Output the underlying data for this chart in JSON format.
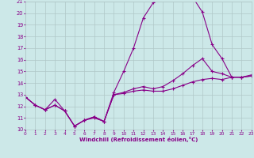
{
  "bg_color": "#cce8e8",
  "grid_color": "#b0c8c8",
  "line_color": "#880088",
  "xlabel": "Windchill (Refroidissement éolien,°C)",
  "xmin": 0,
  "xmax": 23,
  "ymin": 10,
  "ymax": 21,
  "yticks": [
    10,
    11,
    12,
    13,
    14,
    15,
    16,
    17,
    18,
    19,
    20,
    21
  ],
  "xticks": [
    0,
    1,
    2,
    3,
    4,
    5,
    6,
    7,
    8,
    9,
    10,
    11,
    12,
    13,
    14,
    15,
    16,
    17,
    18,
    19,
    20,
    21,
    22,
    23
  ],
  "line1_x": [
    0,
    1,
    2,
    3,
    4,
    5,
    6,
    7,
    8,
    9,
    10,
    11,
    12,
    13,
    14,
    15,
    16,
    17,
    18,
    19,
    20,
    21,
    22,
    23
  ],
  "line1_y": [
    12.8,
    12.1,
    11.7,
    12.1,
    11.6,
    10.3,
    10.8,
    11.1,
    10.7,
    13.0,
    13.1,
    13.3,
    13.4,
    13.3,
    13.3,
    13.5,
    13.8,
    14.1,
    14.3,
    14.4,
    14.3,
    14.5,
    14.5,
    14.6
  ],
  "line2_x": [
    0,
    1,
    2,
    3,
    4,
    5,
    6,
    7,
    8,
    9,
    10,
    11,
    12,
    13,
    14,
    15,
    16,
    17,
    18,
    19,
    20,
    21,
    22,
    23
  ],
  "line2_y": [
    12.8,
    12.1,
    11.7,
    12.6,
    11.6,
    10.3,
    10.8,
    11.1,
    10.7,
    13.2,
    15.0,
    17.0,
    19.6,
    20.9,
    21.5,
    21.5,
    21.5,
    21.4,
    20.1,
    17.3,
    16.1,
    14.5,
    14.5,
    14.7
  ],
  "line3_x": [
    0,
    1,
    2,
    3,
    4,
    5,
    6,
    7,
    8,
    9,
    10,
    11,
    12,
    13,
    14,
    15,
    16,
    17,
    18,
    19,
    20,
    21,
    22,
    23
  ],
  "line3_y": [
    12.8,
    12.1,
    11.7,
    12.1,
    11.6,
    10.3,
    10.8,
    11.0,
    10.7,
    13.0,
    13.2,
    13.5,
    13.7,
    13.5,
    13.7,
    14.2,
    14.8,
    15.5,
    16.1,
    15.0,
    14.8,
    14.5,
    14.5,
    14.6
  ]
}
